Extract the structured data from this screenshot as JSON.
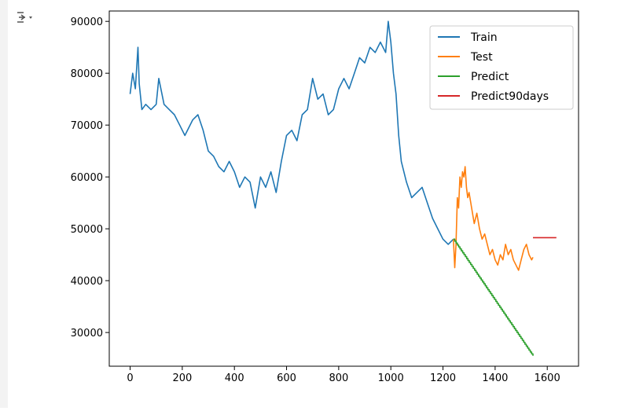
{
  "output": {
    "icon": "output-toggle-icon"
  },
  "chart_data": {
    "type": "line",
    "title": "",
    "xlabel": "",
    "ylabel": "",
    "xlim": [
      -80,
      1720
    ],
    "ylim": [
      23500,
      92000
    ],
    "xticks": [
      0,
      200,
      400,
      600,
      800,
      1000,
      1200,
      1400,
      1600
    ],
    "yticks": [
      30000,
      40000,
      50000,
      60000,
      70000,
      80000,
      90000
    ],
    "xtick_labels": [
      "0",
      "200",
      "400",
      "600",
      "800",
      "1000",
      "1200",
      "1400",
      "1600"
    ],
    "ytick_labels": [
      "30000",
      "40000",
      "50000",
      "60000",
      "70000",
      "80000",
      "90000"
    ],
    "grid": false,
    "legend_position": "top-right",
    "series": [
      {
        "name": "Train",
        "color": "#1f77b4",
        "x": [
          0,
          10,
          20,
          30,
          35,
          45,
          60,
          80,
          100,
          110,
          130,
          150,
          170,
          190,
          210,
          240,
          260,
          280,
          300,
          320,
          340,
          360,
          380,
          400,
          420,
          440,
          460,
          480,
          500,
          520,
          540,
          560,
          580,
          600,
          620,
          640,
          660,
          680,
          700,
          720,
          740,
          760,
          780,
          800,
          820,
          840,
          860,
          880,
          900,
          920,
          940,
          960,
          980,
          990,
          1000,
          1010,
          1020,
          1030,
          1040,
          1060,
          1080,
          1100,
          1120,
          1140,
          1160,
          1180,
          1200,
          1220,
          1240
        ],
        "y": [
          76000,
          80000,
          77000,
          85000,
          78000,
          73000,
          74000,
          73000,
          74000,
          79000,
          74000,
          73000,
          72000,
          70000,
          68000,
          71000,
          72000,
          69000,
          65000,
          64000,
          62000,
          61000,
          63000,
          61000,
          58000,
          60000,
          59000,
          54000,
          60000,
          58000,
          61000,
          57000,
          63000,
          68000,
          69000,
          67000,
          72000,
          73000,
          79000,
          75000,
          76000,
          72000,
          73000,
          77000,
          79000,
          77000,
          80000,
          83000,
          82000,
          85000,
          84000,
          86000,
          84000,
          90000,
          86000,
          80000,
          76000,
          68000,
          63000,
          59000,
          56000,
          57000,
          58000,
          55000,
          52000,
          50000,
          48000,
          47000,
          48000
        ]
      },
      {
        "name": "Test",
        "color": "#ff7f0e",
        "x": [
          1240,
          1245,
          1250,
          1255,
          1260,
          1265,
          1270,
          1275,
          1280,
          1285,
          1290,
          1295,
          1300,
          1310,
          1320,
          1330,
          1340,
          1350,
          1360,
          1370,
          1380,
          1390,
          1400,
          1410,
          1420,
          1430,
          1440,
          1450,
          1460,
          1470,
          1480,
          1490,
          1500,
          1510,
          1520,
          1530,
          1540,
          1545
        ],
        "y": [
          48000,
          42500,
          47000,
          56000,
          54000,
          60000,
          58000,
          61000,
          60000,
          62000,
          58000,
          56000,
          57000,
          54000,
          51000,
          53000,
          50000,
          48000,
          49000,
          47000,
          45000,
          46000,
          44000,
          43000,
          45000,
          44000,
          47000,
          45000,
          46000,
          44000,
          43000,
          42000,
          44000,
          46000,
          47000,
          45000,
          44000,
          44500
        ]
      },
      {
        "name": "Predict",
        "color": "#2ca02c",
        "x": [
          1240,
          1545
        ],
        "y": [
          48000,
          25500
        ]
      },
      {
        "name": "Predict90days",
        "color": "#d62728",
        "x": [
          1545,
          1635
        ],
        "y": [
          48300,
          48300
        ]
      }
    ]
  }
}
